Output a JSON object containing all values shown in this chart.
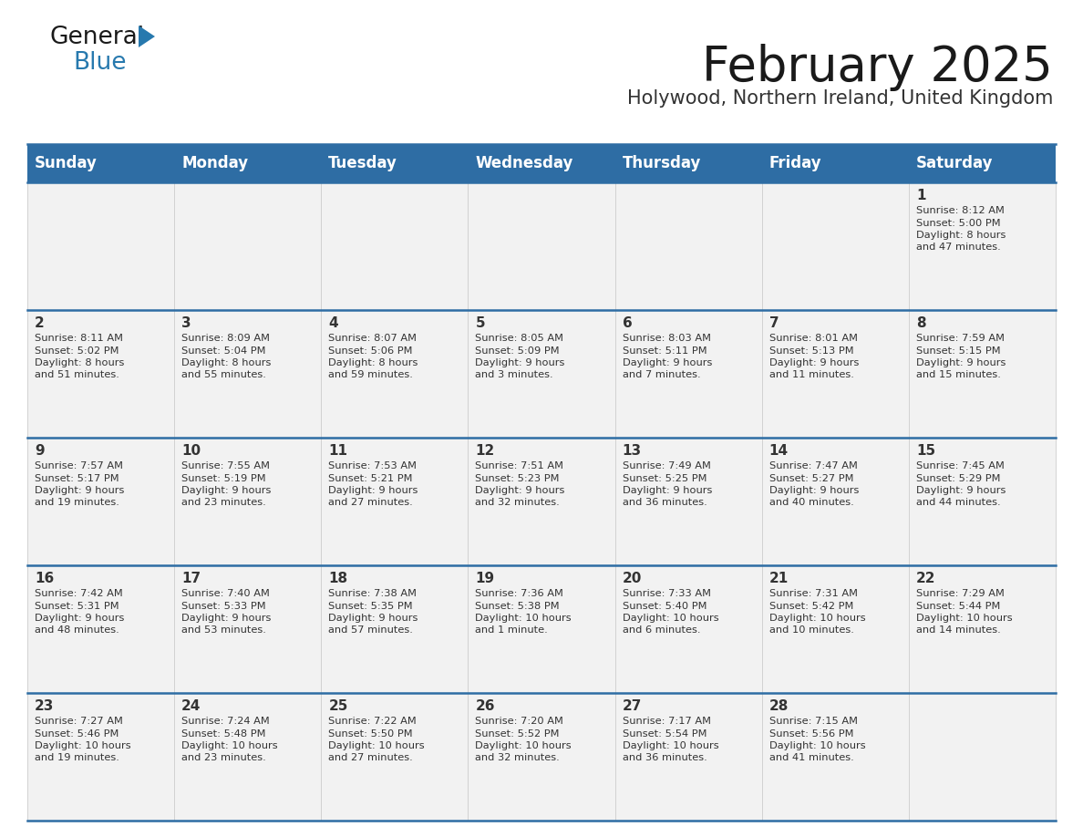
{
  "title": "February 2025",
  "subtitle": "Holywood, Northern Ireland, United Kingdom",
  "header_color": "#2E6DA4",
  "header_text_color": "#FFFFFF",
  "day_names": [
    "Sunday",
    "Monday",
    "Tuesday",
    "Wednesday",
    "Thursday",
    "Friday",
    "Saturday"
  ],
  "background_color": "#FFFFFF",
  "cell_bg_color": "#F2F2F2",
  "cell_border_color": "#CCCCCC",
  "row_divider_color": "#2E6DA4",
  "days": [
    {
      "day": 1,
      "col": 6,
      "row": 0,
      "sunrise": "8:12 AM",
      "sunset": "5:00 PM",
      "daylight": "8 hours and 47 minutes"
    },
    {
      "day": 2,
      "col": 0,
      "row": 1,
      "sunrise": "8:11 AM",
      "sunset": "5:02 PM",
      "daylight": "8 hours and 51 minutes"
    },
    {
      "day": 3,
      "col": 1,
      "row": 1,
      "sunrise": "8:09 AM",
      "sunset": "5:04 PM",
      "daylight": "8 hours and 55 minutes"
    },
    {
      "day": 4,
      "col": 2,
      "row": 1,
      "sunrise": "8:07 AM",
      "sunset": "5:06 PM",
      "daylight": "8 hours and 59 minutes"
    },
    {
      "day": 5,
      "col": 3,
      "row": 1,
      "sunrise": "8:05 AM",
      "sunset": "5:09 PM",
      "daylight": "9 hours and 3 minutes"
    },
    {
      "day": 6,
      "col": 4,
      "row": 1,
      "sunrise": "8:03 AM",
      "sunset": "5:11 PM",
      "daylight": "9 hours and 7 minutes"
    },
    {
      "day": 7,
      "col": 5,
      "row": 1,
      "sunrise": "8:01 AM",
      "sunset": "5:13 PM",
      "daylight": "9 hours and 11 minutes"
    },
    {
      "day": 8,
      "col": 6,
      "row": 1,
      "sunrise": "7:59 AM",
      "sunset": "5:15 PM",
      "daylight": "9 hours and 15 minutes"
    },
    {
      "day": 9,
      "col": 0,
      "row": 2,
      "sunrise": "7:57 AM",
      "sunset": "5:17 PM",
      "daylight": "9 hours and 19 minutes"
    },
    {
      "day": 10,
      "col": 1,
      "row": 2,
      "sunrise": "7:55 AM",
      "sunset": "5:19 PM",
      "daylight": "9 hours and 23 minutes"
    },
    {
      "day": 11,
      "col": 2,
      "row": 2,
      "sunrise": "7:53 AM",
      "sunset": "5:21 PM",
      "daylight": "9 hours and 27 minutes"
    },
    {
      "day": 12,
      "col": 3,
      "row": 2,
      "sunrise": "7:51 AM",
      "sunset": "5:23 PM",
      "daylight": "9 hours and 32 minutes"
    },
    {
      "day": 13,
      "col": 4,
      "row": 2,
      "sunrise": "7:49 AM",
      "sunset": "5:25 PM",
      "daylight": "9 hours and 36 minutes"
    },
    {
      "day": 14,
      "col": 5,
      "row": 2,
      "sunrise": "7:47 AM",
      "sunset": "5:27 PM",
      "daylight": "9 hours and 40 minutes"
    },
    {
      "day": 15,
      "col": 6,
      "row": 2,
      "sunrise": "7:45 AM",
      "sunset": "5:29 PM",
      "daylight": "9 hours and 44 minutes"
    },
    {
      "day": 16,
      "col": 0,
      "row": 3,
      "sunrise": "7:42 AM",
      "sunset": "5:31 PM",
      "daylight": "9 hours and 48 minutes"
    },
    {
      "day": 17,
      "col": 1,
      "row": 3,
      "sunrise": "7:40 AM",
      "sunset": "5:33 PM",
      "daylight": "9 hours and 53 minutes"
    },
    {
      "day": 18,
      "col": 2,
      "row": 3,
      "sunrise": "7:38 AM",
      "sunset": "5:35 PM",
      "daylight": "9 hours and 57 minutes"
    },
    {
      "day": 19,
      "col": 3,
      "row": 3,
      "sunrise": "7:36 AM",
      "sunset": "5:38 PM",
      "daylight": "10 hours and 1 minute"
    },
    {
      "day": 20,
      "col": 4,
      "row": 3,
      "sunrise": "7:33 AM",
      "sunset": "5:40 PM",
      "daylight": "10 hours and 6 minutes"
    },
    {
      "day": 21,
      "col": 5,
      "row": 3,
      "sunrise": "7:31 AM",
      "sunset": "5:42 PM",
      "daylight": "10 hours and 10 minutes"
    },
    {
      "day": 22,
      "col": 6,
      "row": 3,
      "sunrise": "7:29 AM",
      "sunset": "5:44 PM",
      "daylight": "10 hours and 14 minutes"
    },
    {
      "day": 23,
      "col": 0,
      "row": 4,
      "sunrise": "7:27 AM",
      "sunset": "5:46 PM",
      "daylight": "10 hours and 19 minutes"
    },
    {
      "day": 24,
      "col": 1,
      "row": 4,
      "sunrise": "7:24 AM",
      "sunset": "5:48 PM",
      "daylight": "10 hours and 23 minutes"
    },
    {
      "day": 25,
      "col": 2,
      "row": 4,
      "sunrise": "7:22 AM",
      "sunset": "5:50 PM",
      "daylight": "10 hours and 27 minutes"
    },
    {
      "day": 26,
      "col": 3,
      "row": 4,
      "sunrise": "7:20 AM",
      "sunset": "5:52 PM",
      "daylight": "10 hours and 32 minutes"
    },
    {
      "day": 27,
      "col": 4,
      "row": 4,
      "sunrise": "7:17 AM",
      "sunset": "5:54 PM",
      "daylight": "10 hours and 36 minutes"
    },
    {
      "day": 28,
      "col": 5,
      "row": 4,
      "sunrise": "7:15 AM",
      "sunset": "5:56 PM",
      "daylight": "10 hours and 41 minutes"
    }
  ],
  "logo_color_general": "#1a1a1a",
  "logo_color_blue": "#2779AE",
  "title_fontsize": 38,
  "subtitle_fontsize": 15,
  "header_fontsize": 12,
  "day_num_fontsize": 11,
  "cell_text_fontsize": 8.2
}
